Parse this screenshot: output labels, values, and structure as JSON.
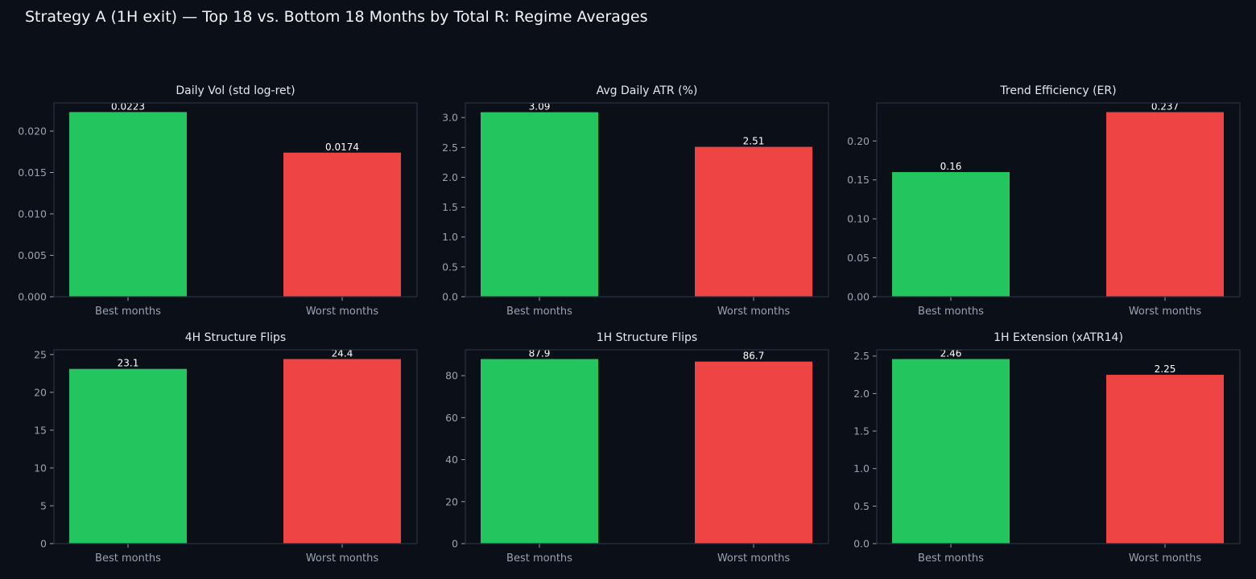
{
  "title": "Strategy A (1H exit) — Top 18 vs. Bottom 18 Months by Total R: Regime Averages",
  "colors": {
    "background": "#0b0f17",
    "panel_border": "#2a3140",
    "axis_text": "#9aa3b2",
    "title_text": "#e6e8ee",
    "value_label": "#ffffff",
    "best": "#22c55e",
    "worst": "#ef4444"
  },
  "chart_data": [
    {
      "type": "bar",
      "title": "Daily Vol (std log-ret)",
      "categories": [
        "Best months",
        "Worst months"
      ],
      "values": [
        0.0223,
        0.0174
      ],
      "value_labels": [
        "0.0223",
        "0.0174"
      ],
      "yticks": [
        0.0,
        0.005,
        0.01,
        0.015,
        0.02
      ],
      "ytick_labels": [
        "0.000",
        "0.005",
        "0.010",
        "0.015",
        "0.020"
      ],
      "ylim": [
        0,
        0.0234
      ],
      "grid": false
    },
    {
      "type": "bar",
      "title": "Avg Daily ATR (%)",
      "categories": [
        "Best months",
        "Worst months"
      ],
      "values": [
        3.09,
        2.51
      ],
      "value_labels": [
        "3.09",
        "2.51"
      ],
      "yticks": [
        0.0,
        0.5,
        1.0,
        1.5,
        2.0,
        2.5,
        3.0
      ],
      "ytick_labels": [
        "0.0",
        "0.5",
        "1.0",
        "1.5",
        "2.0",
        "2.5",
        "3.0"
      ],
      "ylim": [
        0,
        3.245
      ],
      "grid": false
    },
    {
      "type": "bar",
      "title": "Trend Efficiency (ER)",
      "categories": [
        "Best months",
        "Worst months"
      ],
      "values": [
        0.16,
        0.237
      ],
      "value_labels": [
        "0.16",
        "0.237"
      ],
      "yticks": [
        0.0,
        0.05,
        0.1,
        0.15,
        0.2
      ],
      "ytick_labels": [
        "0.00",
        "0.05",
        "0.10",
        "0.15",
        "0.20"
      ],
      "ylim": [
        0,
        0.2488
      ],
      "grid": false
    },
    {
      "type": "bar",
      "title": "4H Structure Flips",
      "categories": [
        "Best months",
        "Worst months"
      ],
      "values": [
        23.1,
        24.4
      ],
      "value_labels": [
        "23.1",
        "24.4"
      ],
      "yticks": [
        0,
        5,
        10,
        15,
        20,
        25
      ],
      "ytick_labels": [
        "0",
        "5",
        "10",
        "15",
        "20",
        "25"
      ],
      "ylim": [
        0,
        25.62
      ],
      "grid": false
    },
    {
      "type": "bar",
      "title": "1H Structure Flips",
      "categories": [
        "Best months",
        "Worst months"
      ],
      "values": [
        87.9,
        86.7
      ],
      "value_labels": [
        "87.9",
        "86.7"
      ],
      "yticks": [
        0,
        20,
        40,
        60,
        80
      ],
      "ytick_labels": [
        "0",
        "20",
        "40",
        "60",
        "80"
      ],
      "ylim": [
        0,
        92.3
      ],
      "grid": false
    },
    {
      "type": "bar",
      "title": "1H Extension (xATR14)",
      "categories": [
        "Best months",
        "Worst months"
      ],
      "values": [
        2.46,
        2.25
      ],
      "value_labels": [
        "2.46",
        "2.25"
      ],
      "yticks": [
        0.0,
        0.5,
        1.0,
        1.5,
        2.0,
        2.5
      ],
      "ytick_labels": [
        "0.0",
        "0.5",
        "1.0",
        "1.5",
        "2.0",
        "2.5"
      ],
      "ylim": [
        0,
        2.583
      ],
      "grid": false
    }
  ]
}
